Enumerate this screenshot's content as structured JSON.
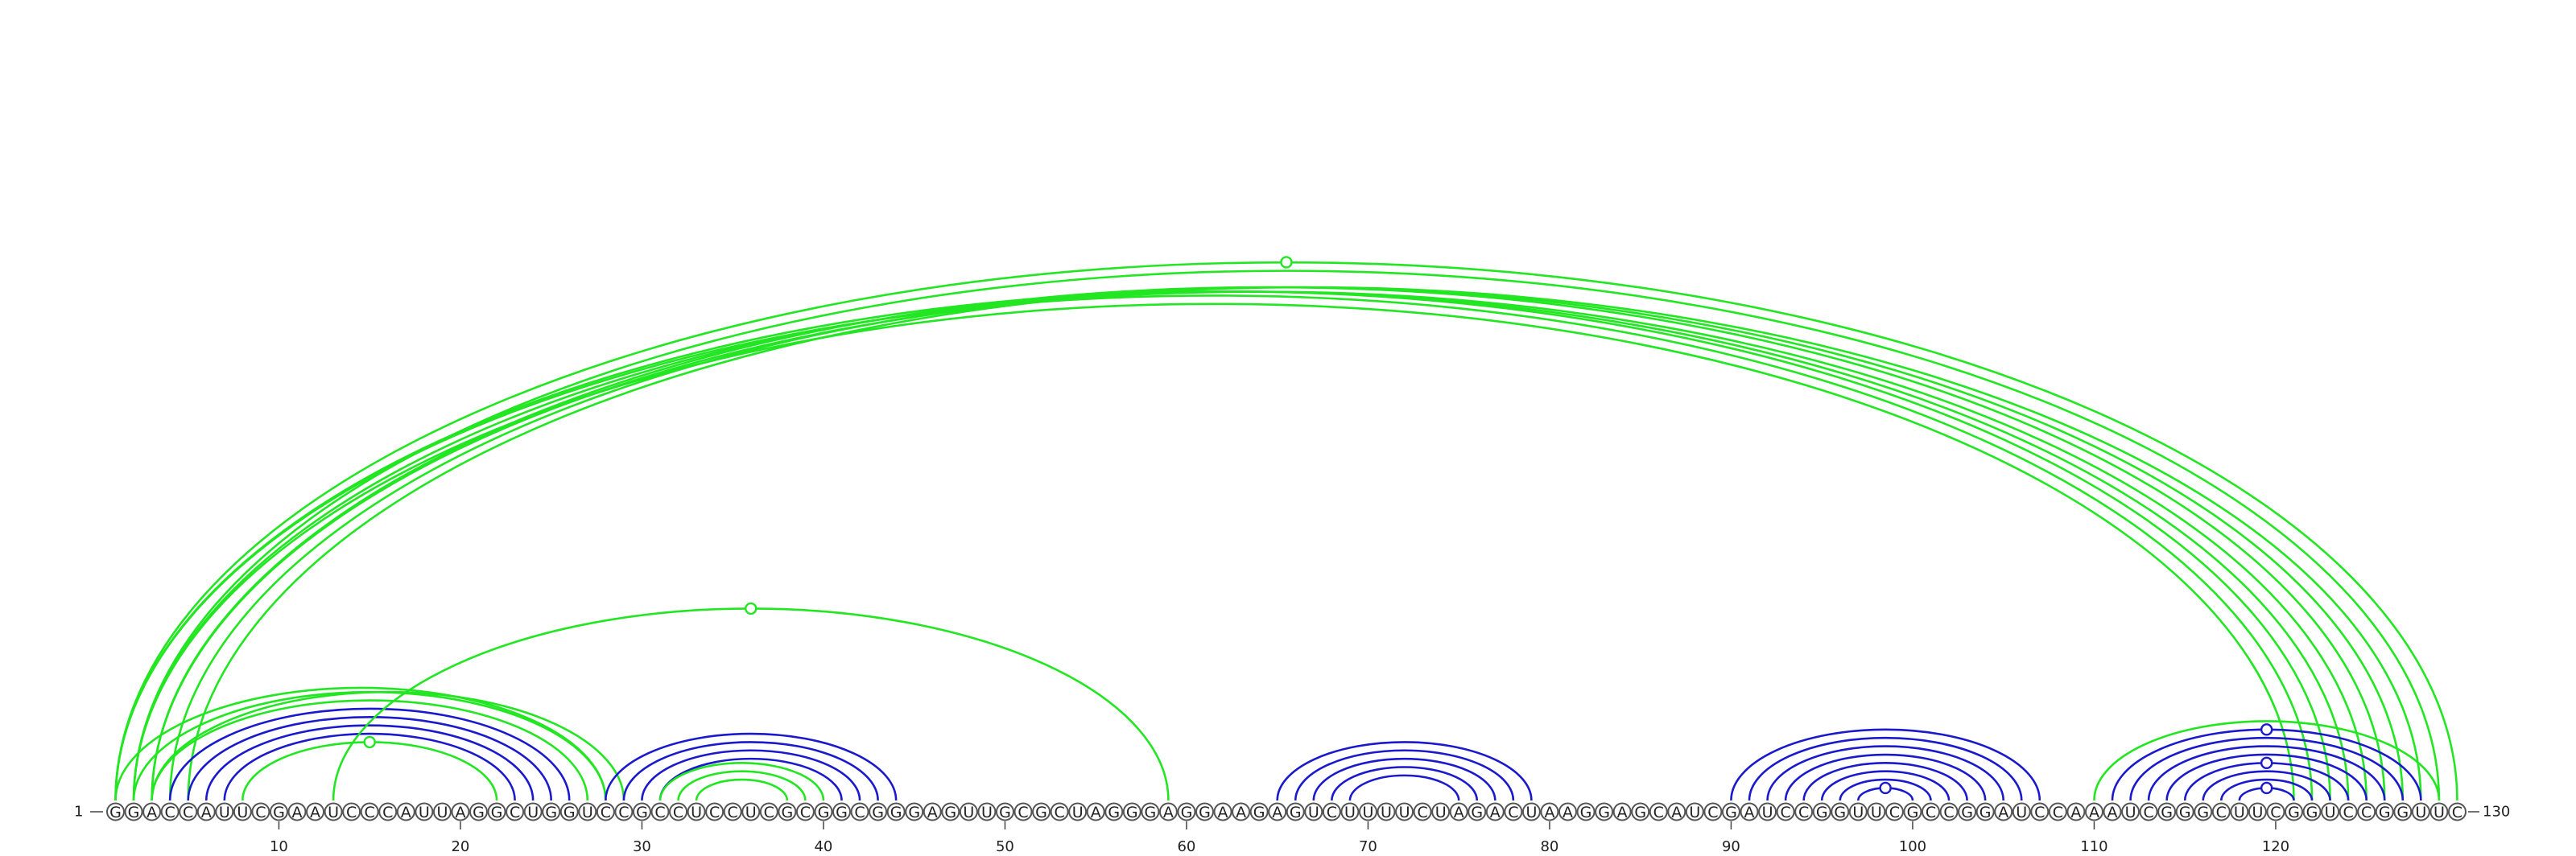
{
  "sequence": "GGACCAUUCGAAUCCCAUUAGGCUGGUCCGCCUCCUCGCGGCGGGAGUUGCGCUAGGGAGGAAGAGUCUUUUCUAGACUAAGGAGCAUCGAUCCGGUUCGCCGGAUCCAAAUCGGGCUUCGGUCCGGUUC",
  "sequence_length": 130,
  "start_label": "1",
  "end_label": "130",
  "tick_labels": [
    "10",
    "20",
    "30",
    "40",
    "50",
    "60",
    "70",
    "80",
    "90",
    "100",
    "110",
    "120"
  ],
  "colors": {
    "green": "#22e622",
    "blue": "#1a1acc"
  },
  "arcs": [
    {
      "i": 1,
      "j": 122,
      "color": "green"
    },
    {
      "i": 1,
      "j": 123,
      "color": "green"
    },
    {
      "i": 2,
      "j": 121,
      "color": "green"
    },
    {
      "i": 2,
      "j": 124,
      "color": "green"
    },
    {
      "i": 3,
      "j": 125,
      "color": "green"
    },
    {
      "i": 3,
      "j": 126,
      "color": "green"
    },
    {
      "i": 4,
      "j": 127,
      "color": "green"
    },
    {
      "i": 5,
      "j": 128,
      "color": "green"
    },
    {
      "i": 1,
      "j": 130,
      "color": "green"
    },
    {
      "i": 2,
      "j": 129,
      "color": "green"
    },
    {
      "i": 1,
      "j": 28,
      "color": "green"
    },
    {
      "i": 2,
      "j": 28,
      "color": "green"
    },
    {
      "i": 3,
      "j": 27,
      "color": "green"
    },
    {
      "i": 3,
      "j": 29,
      "color": "green"
    },
    {
      "i": 4,
      "j": 26,
      "color": "blue"
    },
    {
      "i": 5,
      "j": 25,
      "color": "blue"
    },
    {
      "i": 6,
      "j": 24,
      "color": "blue"
    },
    {
      "i": 7,
      "j": 23,
      "color": "blue"
    },
    {
      "i": 8,
      "j": 22,
      "color": "green"
    },
    {
      "i": 13,
      "j": 59,
      "color": "green"
    },
    {
      "i": 28,
      "j": 44,
      "color": "blue"
    },
    {
      "i": 29,
      "j": 43,
      "color": "blue"
    },
    {
      "i": 30,
      "j": 42,
      "color": "blue"
    },
    {
      "i": 31,
      "j": 41,
      "color": "blue"
    },
    {
      "i": 31,
      "j": 40,
      "color": "green"
    },
    {
      "i": 32,
      "j": 39,
      "color": "green"
    },
    {
      "i": 33,
      "j": 38,
      "color": "green"
    },
    {
      "i": 65,
      "j": 79,
      "color": "blue"
    },
    {
      "i": 66,
      "j": 78,
      "color": "blue"
    },
    {
      "i": 67,
      "j": 77,
      "color": "blue"
    },
    {
      "i": 68,
      "j": 76,
      "color": "blue"
    },
    {
      "i": 69,
      "j": 75,
      "color": "blue"
    },
    {
      "i": 90,
      "j": 107,
      "color": "blue"
    },
    {
      "i": 91,
      "j": 106,
      "color": "blue"
    },
    {
      "i": 92,
      "j": 105,
      "color": "blue"
    },
    {
      "i": 93,
      "j": 104,
      "color": "blue"
    },
    {
      "i": 94,
      "j": 103,
      "color": "blue"
    },
    {
      "i": 95,
      "j": 102,
      "color": "blue"
    },
    {
      "i": 96,
      "j": 101,
      "color": "blue"
    },
    {
      "i": 97,
      "j": 100,
      "color": "blue"
    },
    {
      "i": 110,
      "j": 129,
      "color": "green"
    },
    {
      "i": 111,
      "j": 128,
      "color": "blue"
    },
    {
      "i": 112,
      "j": 127,
      "color": "blue"
    },
    {
      "i": 113,
      "j": 126,
      "color": "blue"
    },
    {
      "i": 114,
      "j": 125,
      "color": "blue"
    },
    {
      "i": 115,
      "j": 124,
      "color": "blue"
    },
    {
      "i": 116,
      "j": 123,
      "color": "blue"
    },
    {
      "i": 117,
      "j": 122,
      "color": "blue"
    },
    {
      "i": 118,
      "j": 121,
      "color": "blue"
    }
  ],
  "markers": [
    {
      "i": 1,
      "j": 130,
      "color": "green"
    },
    {
      "i": 13,
      "j": 59,
      "color": "green",
      "at": "apex"
    },
    {
      "i": 8,
      "j": 22,
      "color": "green"
    },
    {
      "i": 97,
      "j": 100,
      "color": "blue"
    },
    {
      "i": 111,
      "j": 128,
      "color": "blue"
    },
    {
      "i": 115,
      "j": 124,
      "color": "blue"
    },
    {
      "i": 118,
      "j": 121,
      "color": "blue"
    }
  ]
}
